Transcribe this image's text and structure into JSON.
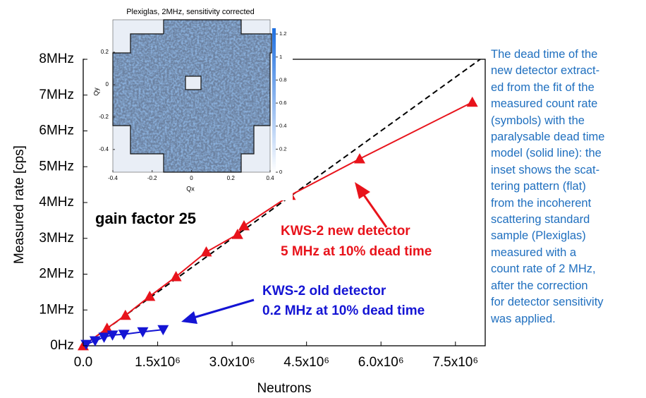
{
  "chart_data": {
    "type": "line",
    "xlabel": "Neutrons",
    "ylabel": "Measured rate [cps]",
    "xlim": [
      0,
      8100000
    ],
    "ylim": [
      0,
      8000000
    ],
    "xticks": [
      {
        "value": 0,
        "label": "0.0"
      },
      {
        "value": 1500000,
        "label": "1.5x10⁶"
      },
      {
        "value": 3000000,
        "label": "3.0x10⁶"
      },
      {
        "value": 4500000,
        "label": "4.5x10⁶"
      },
      {
        "value": 6000000,
        "label": "6.0x10⁶"
      },
      {
        "value": 7500000,
        "label": "7.5x10⁶"
      }
    ],
    "yticks": [
      {
        "value": 0,
        "label": "0Hz"
      },
      {
        "value": 1000000,
        "label": "1MHz"
      },
      {
        "value": 2000000,
        "label": "2MHz"
      },
      {
        "value": 3000000,
        "label": "3MHz"
      },
      {
        "value": 4000000,
        "label": "4MHz"
      },
      {
        "value": 5000000,
        "label": "5MHz"
      },
      {
        "value": 6000000,
        "label": "6MHz"
      },
      {
        "value": 7000000,
        "label": "7MHz"
      },
      {
        "value": 8000000,
        "label": "8MHz"
      }
    ],
    "series": [
      {
        "color": "#000000",
        "dash": true,
        "marker": "none",
        "x": [
          0,
          8000000
        ],
        "values": [
          0,
          8000000
        ]
      },
      {
        "color": "#e8131b",
        "marker": "triangle-up",
        "x": [
          0,
          480000,
          850000,
          1340000,
          1870000,
          2480000,
          3110000,
          3240000,
          4170000,
          5570000,
          7840000
        ],
        "values": [
          0,
          490000,
          850000,
          1380000,
          1930000,
          2620000,
          3110000,
          3350000,
          4200000,
          5220000,
          6800000
        ]
      },
      {
        "color": "#1414d4",
        "marker": "triangle-down",
        "x": [
          60000,
          240000,
          420000,
          590000,
          820000,
          1200000,
          1610000
        ],
        "values": [
          40000,
          140000,
          240000,
          300000,
          320000,
          390000,
          450000
        ]
      }
    ],
    "annotations": [
      {
        "text": "gain factor 25",
        "color": "#000000"
      },
      {
        "text": "KWS-2 new detector",
        "color": "#e8131b"
      },
      {
        "text": "5 MHz at 10% dead time",
        "color": "#e8131b"
      },
      {
        "text": "KWS-2 old detector",
        "color": "#1414d4"
      },
      {
        "text": "0.2 MHz at 10% dead time",
        "color": "#1414d4"
      }
    ],
    "inset": {
      "title": "Plexiglas, 2MHz, sensitivity corrected",
      "xlabel": "Qx",
      "ylabel": "Qy",
      "xlim": [
        -0.4,
        0.4
      ],
      "ylim": [
        -0.54,
        0.4
      ],
      "xticks": [
        -0.4,
        -0.2,
        0,
        0.2,
        0.4
      ],
      "yticks": [
        -0.4,
        -0.2,
        0,
        0.2
      ],
      "clim": [
        0,
        1.25
      ],
      "cticks": [
        0,
        0.2,
        0.4,
        0.6,
        0.8,
        1,
        1.2
      ]
    }
  },
  "caption_lines": [
    "The dead time of the",
    "new detector extract-",
    "ed from the fit of the",
    "measured count rate",
    "(symbols) with the",
    "paralysable dead time",
    "model (solid line): the",
    "inset shows the scat-",
    "tering pattern (flat)",
    "from the incoherent",
    "scattering standard",
    "sample (Plexiglas)",
    "measured with a",
    "count rate of 2 MHz,",
    "after the correction",
    "for detector sensitivity",
    "was applied."
  ]
}
